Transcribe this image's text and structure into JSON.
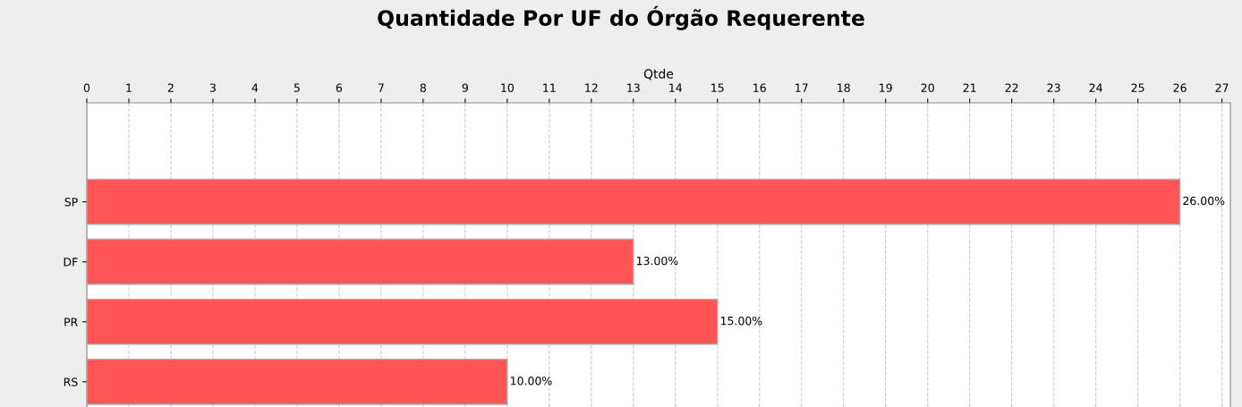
{
  "chart_data": {
    "type": "bar",
    "orientation": "horizontal",
    "title": "Quantidade Por UF do Órgão Requerente",
    "xlabel": "Qtde",
    "categories": [
      "SP",
      "DF",
      "PR",
      "RS"
    ],
    "values": [
      26,
      13,
      15,
      10
    ],
    "color": "#ff5555",
    "value_labels": [
      "26.00%",
      "13.00%",
      "15.00%",
      "10.00%"
    ],
    "xlim": [
      0,
      27.2
    ],
    "xticks": [
      0,
      1,
      2,
      3,
      4,
      5,
      6,
      7,
      8,
      9,
      10,
      11,
      12,
      13,
      14,
      15,
      16,
      17,
      18,
      19,
      20,
      21,
      22,
      23,
      24,
      25,
      26,
      27
    ],
    "grid": "x",
    "legend": false
  }
}
